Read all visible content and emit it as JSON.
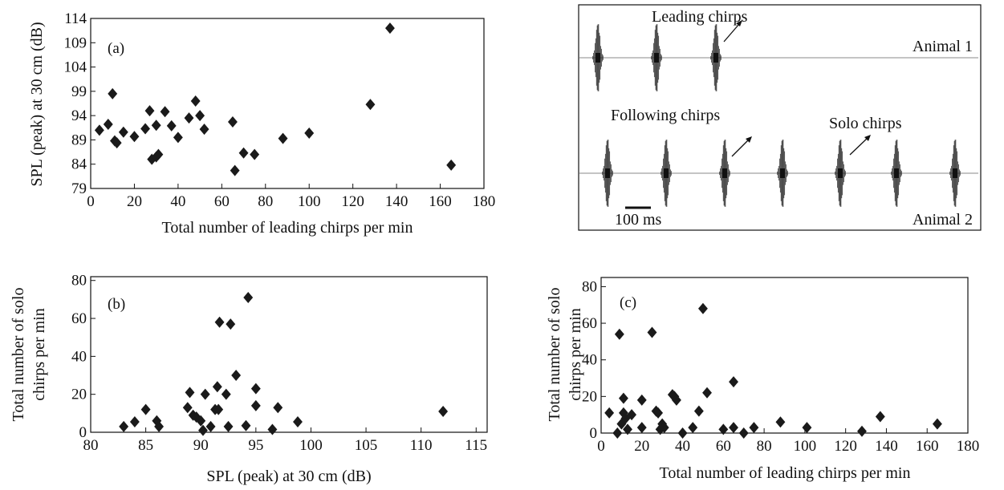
{
  "colors": {
    "marker": "#1a1a1a",
    "axis": "#111111",
    "trace": "#777777"
  },
  "chart_data": [
    {
      "type": "scatter",
      "panel_label": "(a)",
      "xlabel": "Total number of leading chirps per min",
      "ylabel": "SPL (peak) at 30 cm (dB)",
      "xlim": [
        0,
        180
      ],
      "ylim": [
        79,
        114
      ],
      "xticks": [
        0,
        20,
        40,
        60,
        80,
        100,
        120,
        140,
        160,
        180
      ],
      "yticks": [
        79,
        84,
        89,
        94,
        99,
        104,
        109,
        114
      ],
      "marker": "diamond",
      "points": [
        [
          4,
          91
        ],
        [
          8,
          92.2
        ],
        [
          10,
          98.5
        ],
        [
          11,
          88.8
        ],
        [
          12,
          88.4
        ],
        [
          15,
          90.6
        ],
        [
          20,
          89.7
        ],
        [
          25,
          91.3
        ],
        [
          27,
          95
        ],
        [
          28,
          85
        ],
        [
          30,
          85.5
        ],
        [
          30,
          92
        ],
        [
          31,
          86
        ],
        [
          34,
          94.8
        ],
        [
          37,
          91.9
        ],
        [
          40,
          89.5
        ],
        [
          45,
          93.5
        ],
        [
          48,
          97
        ],
        [
          50,
          94
        ],
        [
          52,
          91.2
        ],
        [
          65,
          92.7
        ],
        [
          66,
          82.7
        ],
        [
          70,
          86.3
        ],
        [
          75,
          86
        ],
        [
          88,
          89.3
        ],
        [
          100,
          90.4
        ],
        [
          128,
          96.3
        ],
        [
          137,
          112
        ],
        [
          165,
          83.8
        ]
      ]
    },
    {
      "type": "scatter",
      "panel_label": "(b)",
      "xlabel": "SPL (peak) at 30 cm (dB)",
      "ylabel": "Total number of solo chirps per min",
      "ylabel_lines": [
        "Total number of solo",
        "chirps per min"
      ],
      "xlim": [
        80,
        116
      ],
      "ylim": [
        0,
        82
      ],
      "xticks": [
        80,
        85,
        90,
        95,
        100,
        105,
        110,
        115
      ],
      "yticks": [
        0,
        20,
        40,
        60,
        80
      ],
      "marker": "diamond",
      "points": [
        [
          83,
          3
        ],
        [
          84,
          5.5
        ],
        [
          85,
          12
        ],
        [
          86,
          6
        ],
        [
          86.2,
          3
        ],
        [
          88.8,
          13
        ],
        [
          89,
          21
        ],
        [
          89.3,
          9
        ],
        [
          89.6,
          8
        ],
        [
          90,
          6
        ],
        [
          90.2,
          1
        ],
        [
          90.4,
          20
        ],
        [
          90.9,
          3
        ],
        [
          91.3,
          12
        ],
        [
          91.5,
          24
        ],
        [
          91.6,
          12
        ],
        [
          91.7,
          58
        ],
        [
          92.3,
          20
        ],
        [
          92.5,
          3
        ],
        [
          92.7,
          57
        ],
        [
          93.2,
          30
        ],
        [
          94.1,
          3.5
        ],
        [
          94.3,
          71
        ],
        [
          95,
          14
        ],
        [
          95,
          23
        ],
        [
          96.5,
          1.5
        ],
        [
          97,
          13
        ],
        [
          98.8,
          5.5
        ],
        [
          112,
          11
        ]
      ]
    },
    {
      "type": "scatter",
      "panel_label": "(c)",
      "xlabel": "Total number of leading chirps per min",
      "ylabel": "Total number of solo chirps per min",
      "ylabel_lines": [
        "Total number of solo",
        "chirps per min"
      ],
      "xlim": [
        0,
        180
      ],
      "ylim": [
        0,
        85
      ],
      "xticks": [
        0,
        20,
        40,
        60,
        80,
        100,
        120,
        140,
        160,
        180
      ],
      "yticks": [
        0,
        20,
        40,
        60,
        80
      ],
      "marker": "diamond",
      "points": [
        [
          4,
          11
        ],
        [
          8,
          0
        ],
        [
          9,
          54
        ],
        [
          10,
          5
        ],
        [
          11,
          19
        ],
        [
          11,
          11
        ],
        [
          12,
          8
        ],
        [
          13,
          2
        ],
        [
          15,
          10
        ],
        [
          20,
          18
        ],
        [
          20,
          3
        ],
        [
          25,
          55
        ],
        [
          27,
          12
        ],
        [
          28,
          11
        ],
        [
          29,
          2
        ],
        [
          30,
          5
        ],
        [
          31,
          3
        ],
        [
          35,
          21
        ],
        [
          36,
          20
        ],
        [
          37,
          18
        ],
        [
          40,
          0
        ],
        [
          45,
          3
        ],
        [
          48,
          12
        ],
        [
          50,
          68
        ],
        [
          52,
          22
        ],
        [
          60,
          2
        ],
        [
          65,
          28
        ],
        [
          65,
          3
        ],
        [
          70,
          0
        ],
        [
          75,
          3
        ],
        [
          88,
          6
        ],
        [
          101,
          3
        ],
        [
          128,
          1
        ],
        [
          137,
          9
        ],
        [
          165,
          5
        ]
      ]
    }
  ],
  "oscillogram": {
    "labels": {
      "leading": "Leading chirps",
      "following": "Following chirps",
      "solo": "Solo chirps",
      "animal1": "Animal 1",
      "animal2": "Animal 2",
      "scale": "100 ms"
    },
    "animal1_chirp_count": 3,
    "animal2_chirp_count": 7
  }
}
